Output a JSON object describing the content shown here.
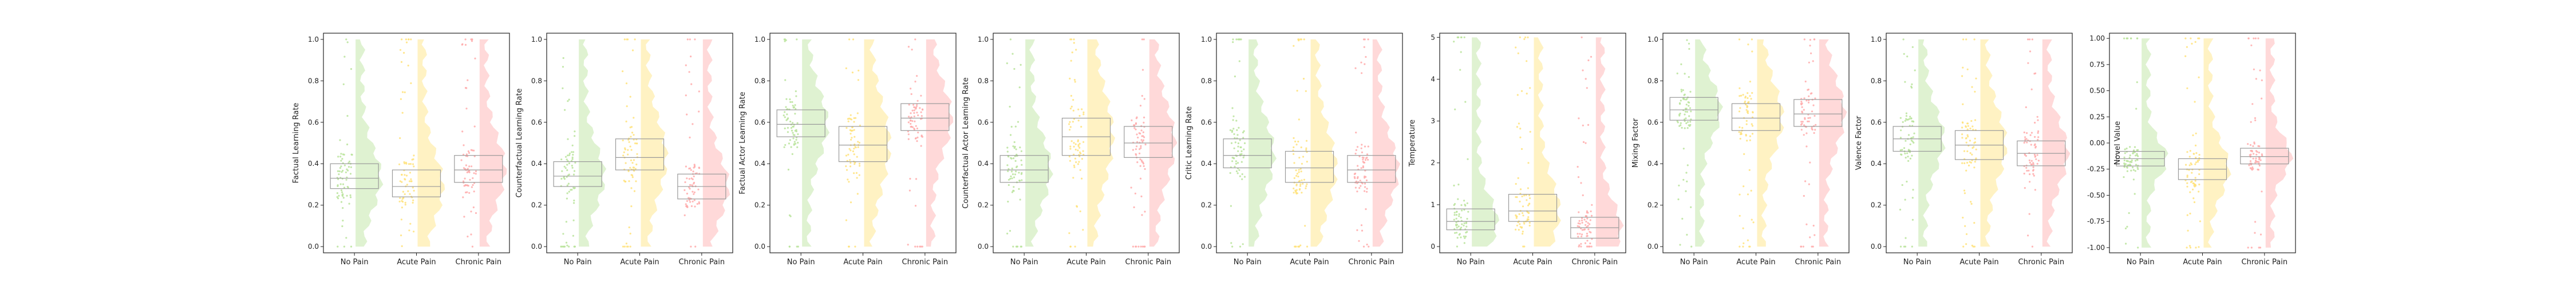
{
  "categories": [
    "No Pain",
    "Acute Pain",
    "Chronic Pain"
  ],
  "category_colors": [
    "#b8e39a",
    "#ffe27a",
    "#ffaaaa"
  ],
  "chart_data": [
    {
      "type": "box",
      "ylabel": "Factual Learning Rate",
      "ylim": [
        -0.03,
        1.03
      ],
      "yticks": [
        0.0,
        0.2,
        0.4,
        0.6,
        0.8,
        1.0
      ],
      "ytick_labels": [
        "0.0",
        "0.2",
        "0.4",
        "0.6",
        "0.8",
        "1.0"
      ],
      "boxes": [
        {
          "q1": 0.28,
          "median": 0.33,
          "q3": 0.4
        },
        {
          "q1": 0.24,
          "median": 0.29,
          "q3": 0.37
        },
        {
          "q1": 0.31,
          "median": 0.37,
          "q3": 0.44
        }
      ]
    },
    {
      "type": "box",
      "ylabel": "Counterfactual Learning Rate",
      "ylim": [
        -0.03,
        1.03
      ],
      "yticks": [
        0.0,
        0.2,
        0.4,
        0.6,
        0.8,
        1.0
      ],
      "ytick_labels": [
        "0.0",
        "0.2",
        "0.4",
        "0.6",
        "0.8",
        "1.0"
      ],
      "boxes": [
        {
          "q1": 0.29,
          "median": 0.34,
          "q3": 0.41
        },
        {
          "q1": 0.37,
          "median": 0.43,
          "q3": 0.52
        },
        {
          "q1": 0.23,
          "median": 0.29,
          "q3": 0.35
        }
      ]
    },
    {
      "type": "box",
      "ylabel": "Factual Actor Learning Rate",
      "ylim": [
        -0.03,
        1.03
      ],
      "yticks": [
        0.0,
        0.2,
        0.4,
        0.6,
        0.8,
        1.0
      ],
      "ytick_labels": [
        "0.0",
        "0.2",
        "0.4",
        "0.6",
        "0.8",
        "1.0"
      ],
      "boxes": [
        {
          "q1": 0.53,
          "median": 0.59,
          "q3": 0.66
        },
        {
          "q1": 0.41,
          "median": 0.49,
          "q3": 0.58
        },
        {
          "q1": 0.56,
          "median": 0.62,
          "q3": 0.69
        }
      ]
    },
    {
      "type": "box",
      "ylabel": "Counterfactual Actor Learning Rate",
      "ylim": [
        -0.03,
        1.03
      ],
      "yticks": [
        0.0,
        0.2,
        0.4,
        0.6,
        0.8,
        1.0
      ],
      "ytick_labels": [
        "0.0",
        "0.2",
        "0.4",
        "0.6",
        "0.8",
        "1.0"
      ],
      "boxes": [
        {
          "q1": 0.31,
          "median": 0.37,
          "q3": 0.44
        },
        {
          "q1": 0.44,
          "median": 0.53,
          "q3": 0.62
        },
        {
          "q1": 0.43,
          "median": 0.5,
          "q3": 0.58
        }
      ]
    },
    {
      "type": "box",
      "ylabel": "Critic Learning Rate",
      "ylim": [
        -0.03,
        1.03
      ],
      "yticks": [
        0.0,
        0.2,
        0.4,
        0.6,
        0.8,
        1.0
      ],
      "ytick_labels": [
        "0.0",
        "0.2",
        "0.4",
        "0.6",
        "0.8",
        "1.0"
      ],
      "boxes": [
        {
          "q1": 0.38,
          "median": 0.44,
          "q3": 0.52
        },
        {
          "q1": 0.31,
          "median": 0.38,
          "q3": 0.46
        },
        {
          "q1": 0.31,
          "median": 0.37,
          "q3": 0.44
        }
      ]
    },
    {
      "type": "box",
      "ylabel": "Temperature",
      "ylim": [
        -0.15,
        5.1
      ],
      "yticks": [
        0,
        1,
        2,
        3,
        4,
        5
      ],
      "ytick_labels": [
        "0",
        "1",
        "2",
        "3",
        "4",
        "5"
      ],
      "boxes": [
        {
          "q1": 0.4,
          "median": 0.6,
          "q3": 0.9
        },
        {
          "q1": 0.6,
          "median": 0.85,
          "q3": 1.25
        },
        {
          "q1": 0.2,
          "median": 0.45,
          "q3": 0.7
        }
      ]
    },
    {
      "type": "box",
      "ylabel": "Mixing Factor",
      "ylim": [
        -0.03,
        1.03
      ],
      "yticks": [
        0.0,
        0.2,
        0.4,
        0.6,
        0.8,
        1.0
      ],
      "ytick_labels": [
        "0.0",
        "0.2",
        "0.4",
        "0.6",
        "0.8",
        "1.0"
      ],
      "boxes": [
        {
          "q1": 0.61,
          "median": 0.66,
          "q3": 0.72
        },
        {
          "q1": 0.56,
          "median": 0.62,
          "q3": 0.69
        },
        {
          "q1": 0.58,
          "median": 0.64,
          "q3": 0.71
        }
      ]
    },
    {
      "type": "box",
      "ylabel": "Valence Factor",
      "ylim": [
        -0.03,
        1.03
      ],
      "yticks": [
        0.0,
        0.2,
        0.4,
        0.6,
        0.8,
        1.0
      ],
      "ytick_labels": [
        "0.0",
        "0.2",
        "0.4",
        "0.6",
        "0.8",
        "1.0"
      ],
      "boxes": [
        {
          "q1": 0.46,
          "median": 0.52,
          "q3": 0.58
        },
        {
          "q1": 0.42,
          "median": 0.49,
          "q3": 0.56
        },
        {
          "q1": 0.39,
          "median": 0.45,
          "q3": 0.51
        }
      ]
    },
    {
      "type": "box",
      "ylabel": "Novel Value",
      "ylim": [
        -1.05,
        1.05
      ],
      "yticks": [
        -1.0,
        -0.75,
        -0.5,
        -0.25,
        0.0,
        0.25,
        0.5,
        0.75,
        1.0
      ],
      "ytick_labels": [
        "-1.00",
        "-0.75",
        "-0.50",
        "-0.25",
        "0.00",
        "0.25",
        "0.50",
        "0.75",
        "1.00"
      ],
      "boxes": [
        {
          "q1": -0.22,
          "median": -0.15,
          "q3": -0.08
        },
        {
          "q1": -0.35,
          "median": -0.25,
          "q3": -0.15
        },
        {
          "q1": -0.2,
          "median": -0.13,
          "q3": -0.05
        }
      ]
    }
  ]
}
